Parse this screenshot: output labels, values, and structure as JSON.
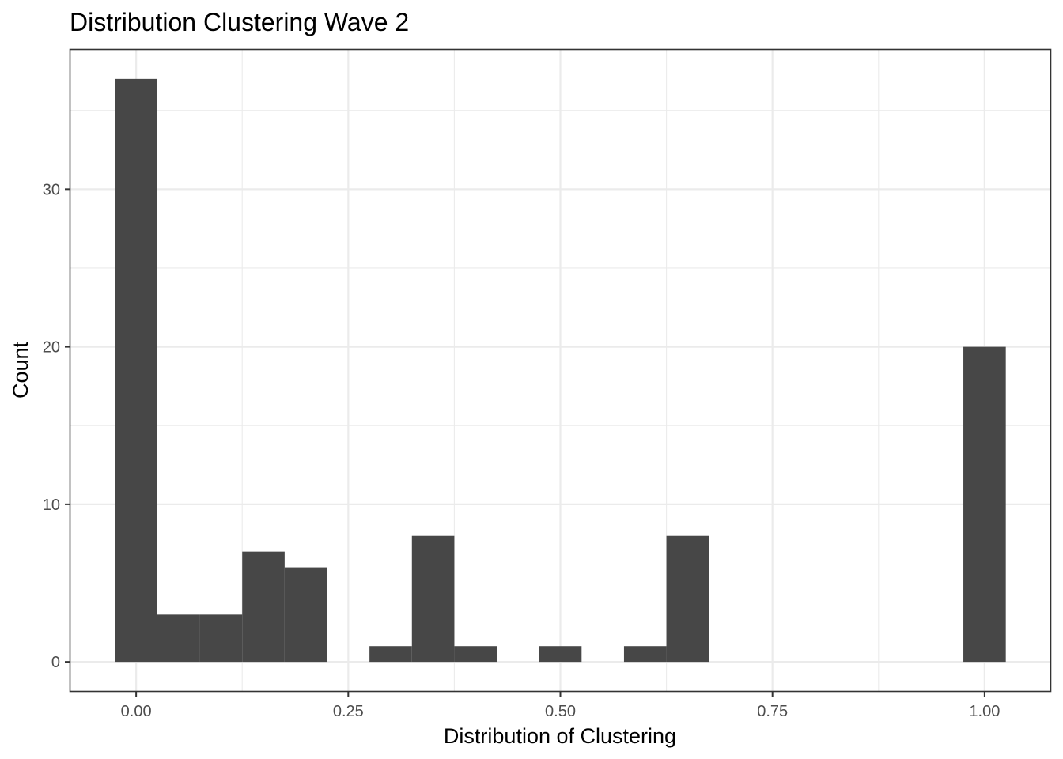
{
  "chart_data": {
    "type": "bar",
    "title": "Distribution Clustering Wave 2",
    "xlabel": "Distribution of Clustering",
    "ylabel": "Count",
    "binwidth": 0.05,
    "bins": [
      {
        "center": 0.0,
        "count": 37
      },
      {
        "center": 0.05,
        "count": 3
      },
      {
        "center": 0.1,
        "count": 3
      },
      {
        "center": 0.15,
        "count": 7
      },
      {
        "center": 0.2,
        "count": 6
      },
      {
        "center": 0.25,
        "count": 0
      },
      {
        "center": 0.3,
        "count": 1
      },
      {
        "center": 0.35,
        "count": 8
      },
      {
        "center": 0.4,
        "count": 1
      },
      {
        "center": 0.45,
        "count": 0
      },
      {
        "center": 0.5,
        "count": 1
      },
      {
        "center": 0.55,
        "count": 0
      },
      {
        "center": 0.6,
        "count": 1
      },
      {
        "center": 0.65,
        "count": 8
      },
      {
        "center": 0.7,
        "count": 0
      },
      {
        "center": 0.75,
        "count": 0
      },
      {
        "center": 0.8,
        "count": 0
      },
      {
        "center": 0.85,
        "count": 0
      },
      {
        "center": 0.9,
        "count": 0
      },
      {
        "center": 0.95,
        "count": 0
      },
      {
        "center": 1.0,
        "count": 20
      }
    ],
    "xlim": [
      -0.0775,
      1.0775
    ],
    "ylim": [
      -1.85,
      38.85
    ],
    "x_ticks": [
      0,
      0.25,
      0.5,
      0.75,
      1.0
    ],
    "x_tick_labels": [
      "0.00",
      "0.25",
      "0.50",
      "0.75",
      "1.00"
    ],
    "y_ticks": [
      0,
      10,
      20,
      30
    ],
    "y_tick_labels": [
      "0",
      "10",
      "20",
      "30"
    ],
    "bar_color": "#474747",
    "grid": true,
    "legend": "none"
  }
}
